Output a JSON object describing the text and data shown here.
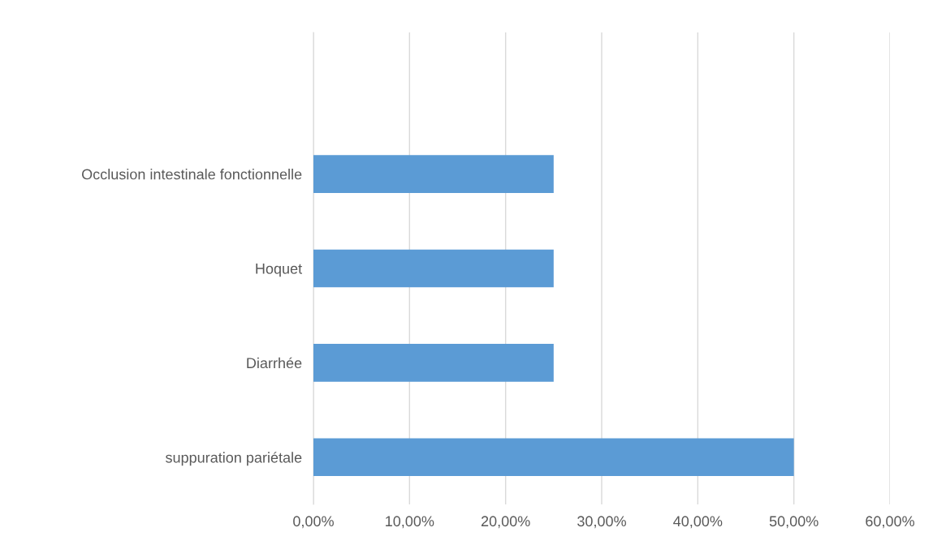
{
  "chart_data": {
    "type": "bar",
    "orientation": "horizontal",
    "categories": [
      null,
      "Occlusion intestinale fonctionnelle",
      "Hoquet",
      "Diarrhée",
      "suppuration pariétale"
    ],
    "values": [
      null,
      25,
      25,
      25,
      50
    ],
    "color": "#5b9bd5",
    "xlim": [
      0,
      60
    ],
    "xticks": [
      {
        "value": 0,
        "label": "0,00%"
      },
      {
        "value": 10,
        "label": "10,00%"
      },
      {
        "value": 20,
        "label": "20,00%"
      },
      {
        "value": 30,
        "label": "30,00%"
      },
      {
        "value": 40,
        "label": "40,00%"
      },
      {
        "value": 50,
        "label": "50,00%"
      },
      {
        "value": 60,
        "label": "60,00%"
      }
    ],
    "grid": "x",
    "legend": false
  }
}
